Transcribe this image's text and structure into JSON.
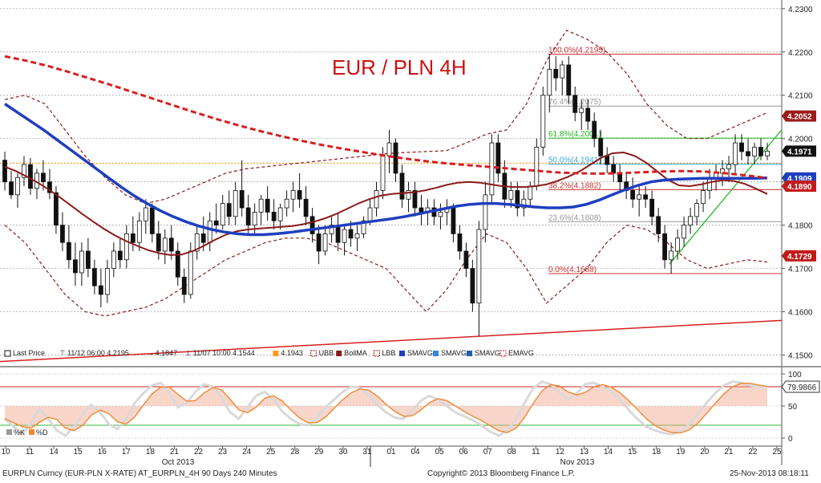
{
  "chart_data": {
    "type": "candlestick",
    "title": "EUR / PLN 4H",
    "title_color": "#cc1111",
    "y_axis": {
      "range": [
        4.1475,
        4.232
      ],
      "ticks": [
        "4.2300",
        "4.2200",
        "4.2100",
        "4.2000",
        "4.1900",
        "4.1800",
        "4.1700",
        "4.1600",
        "4.1500"
      ]
    },
    "price_badges": [
      {
        "label": "4.2052",
        "value": 4.2052,
        "color": "#9b1c1c"
      },
      {
        "label": "4.1971",
        "value": 4.1971,
        "color": "#111111"
      },
      {
        "label": "4.1909",
        "value": 4.1909,
        "color": "#1f3fbf"
      },
      {
        "label": "4.1890",
        "value": 4.189,
        "color": "#c21b1b"
      },
      {
        "label": "4.1729",
        "value": 4.1729,
        "color": "#c21b1b"
      }
    ],
    "x_axis": {
      "day_ticks": [
        "10",
        "11",
        "14",
        "15",
        "16",
        "17",
        "18",
        "21",
        "22",
        "23",
        "24",
        "25",
        "28",
        "29",
        "30",
        "31",
        "01",
        "04",
        "05",
        "06",
        "07",
        "08",
        "11",
        "12",
        "13",
        "14",
        "15",
        "18",
        "19",
        "20",
        "21",
        "22",
        "25"
      ],
      "month_labels": [
        "Oct 2013",
        "Nov 2013"
      ]
    },
    "fibonacci": [
      {
        "label": "100.0%(4.2195)",
        "value": 4.2195,
        "color": "#cc3333"
      },
      {
        "label": "76.4%(4.2075)",
        "value": 4.2075,
        "color": "#999999"
      },
      {
        "label": "61.8%(4.2001)",
        "value": 4.2001,
        "color": "#22bb22"
      },
      {
        "label": "50.0%(4.1941)",
        "value": 4.1941,
        "color": "#33aadd"
      },
      {
        "label": "38.2%(4.1882)",
        "value": 4.1882,
        "color": "#cc3333"
      },
      {
        "label": "23.6%(4.1808)",
        "value": 4.1808,
        "color": "#999999"
      },
      {
        "label": "0.0%(4.1688)",
        "value": 4.1688,
        "color": "#cc3333"
      }
    ],
    "horizontal_level": {
      "value": 4.1943,
      "color": "#ff9922"
    },
    "candles": [
      [
        4.195,
        4.197,
        4.188,
        4.19
      ],
      [
        4.19,
        4.1925,
        4.186,
        4.187
      ],
      [
        4.187,
        4.192,
        4.184,
        4.191
      ],
      [
        4.191,
        4.196,
        4.189,
        4.194
      ],
      [
        4.194,
        4.1955,
        4.187,
        4.1885
      ],
      [
        4.1885,
        4.193,
        4.186,
        4.192
      ],
      [
        4.192,
        4.195,
        4.188,
        4.19
      ],
      [
        4.19,
        4.193,
        4.186,
        4.1875
      ],
      [
        4.1875,
        4.189,
        4.178,
        4.18
      ],
      [
        4.18,
        4.183,
        4.174,
        4.176
      ],
      [
        4.176,
        4.18,
        4.17,
        4.172
      ],
      [
        4.172,
        4.176,
        4.166,
        4.169
      ],
      [
        4.169,
        4.176,
        4.166,
        4.174
      ],
      [
        4.174,
        4.177,
        4.168,
        4.17
      ],
      [
        4.17,
        4.172,
        4.164,
        4.166
      ],
      [
        4.166,
        4.17,
        4.161,
        4.164
      ],
      [
        4.164,
        4.172,
        4.162,
        4.17
      ],
      [
        4.17,
        4.176,
        4.168,
        4.174
      ],
      [
        4.174,
        4.177,
        4.17,
        4.172
      ],
      [
        4.172,
        4.18,
        4.17,
        4.178
      ],
      [
        4.178,
        4.182,
        4.174,
        4.176
      ],
      [
        4.176,
        4.183,
        4.174,
        4.181
      ],
      [
        4.181,
        4.186,
        4.178,
        4.184
      ],
      [
        4.184,
        4.185,
        4.176,
        4.178
      ],
      [
        4.178,
        4.181,
        4.172,
        4.174
      ],
      [
        4.174,
        4.179,
        4.171,
        4.177
      ],
      [
        4.177,
        4.18,
        4.172,
        4.174
      ],
      [
        4.174,
        4.176,
        4.166,
        4.168
      ],
      [
        4.168,
        4.17,
        4.162,
        4.164
      ],
      [
        4.164,
        4.176,
        4.163,
        4.174
      ],
      [
        4.174,
        4.18,
        4.172,
        4.178
      ],
      [
        4.178,
        4.182,
        4.174,
        4.176
      ],
      [
        4.176,
        4.183,
        4.174,
        4.181
      ],
      [
        4.181,
        4.185,
        4.178,
        4.18
      ],
      [
        4.18,
        4.187,
        4.179,
        4.185
      ],
      [
        4.185,
        4.188,
        4.18,
        4.182
      ],
      [
        4.182,
        4.19,
        4.18,
        4.188
      ],
      [
        4.188,
        4.195,
        4.182,
        4.184
      ],
      [
        4.184,
        4.187,
        4.178,
        4.18
      ],
      [
        4.18,
        4.185,
        4.178,
        4.183
      ],
      [
        4.183,
        4.187,
        4.18,
        4.186
      ],
      [
        4.186,
        4.189,
        4.181,
        4.183
      ],
      [
        4.183,
        4.186,
        4.179,
        4.181
      ],
      [
        4.181,
        4.185,
        4.179,
        4.184
      ],
      [
        4.184,
        4.188,
        4.182,
        4.186
      ],
      [
        4.186,
        4.19,
        4.183,
        4.188
      ],
      [
        4.188,
        4.192,
        4.184,
        4.186
      ],
      [
        4.186,
        4.189,
        4.18,
        4.182
      ],
      [
        4.182,
        4.184,
        4.176,
        4.178
      ],
      [
        4.178,
        4.18,
        4.171,
        4.174
      ],
      [
        4.174,
        4.18,
        4.173,
        4.178
      ],
      [
        4.178,
        4.182,
        4.176,
        4.18
      ],
      [
        4.18,
        4.183,
        4.174,
        4.176
      ],
      [
        4.176,
        4.18,
        4.173,
        4.179
      ],
      [
        4.179,
        4.181,
        4.175,
        4.177
      ],
      [
        4.177,
        4.18,
        4.174,
        4.178
      ],
      [
        4.178,
        4.182,
        4.177,
        4.181
      ],
      [
        4.181,
        4.186,
        4.18,
        4.184
      ],
      [
        4.184,
        4.19,
        4.182,
        4.188
      ],
      [
        4.188,
        4.198,
        4.186,
        4.196
      ],
      [
        4.196,
        4.202,
        4.192,
        4.199
      ],
      [
        4.199,
        4.2,
        4.19,
        4.192
      ],
      [
        4.192,
        4.194,
        4.184,
        4.186
      ],
      [
        4.186,
        4.19,
        4.183,
        4.188
      ],
      [
        4.188,
        4.19,
        4.182,
        4.184
      ],
      [
        4.184,
        4.187,
        4.18,
        4.183
      ],
      [
        4.183,
        4.186,
        4.18,
        4.184
      ],
      [
        4.184,
        4.186,
        4.18,
        4.182
      ],
      [
        4.182,
        4.185,
        4.179,
        4.183
      ],
      [
        4.183,
        4.186,
        4.18,
        4.184
      ],
      [
        4.184,
        4.185,
        4.176,
        4.178
      ],
      [
        4.178,
        4.18,
        4.172,
        4.174
      ],
      [
        4.174,
        4.176,
        4.168,
        4.17
      ],
      [
        4.17,
        4.172,
        4.16,
        4.162
      ],
      [
        4.162,
        4.181,
        4.1544,
        4.179
      ],
      [
        4.179,
        4.19,
        4.176,
        4.187
      ],
      [
        4.187,
        4.201,
        4.185,
        4.199
      ],
      [
        4.199,
        4.201,
        4.19,
        4.192
      ],
      [
        4.192,
        4.195,
        4.184,
        4.186
      ],
      [
        4.186,
        4.19,
        4.184,
        4.188
      ],
      [
        4.188,
        4.19,
        4.182,
        4.184
      ],
      [
        4.184,
        4.188,
        4.182,
        4.186
      ],
      [
        4.186,
        4.19,
        4.184,
        4.189
      ],
      [
        4.189,
        4.2,
        4.188,
        4.198
      ],
      [
        4.198,
        4.212,
        4.196,
        4.21
      ],
      [
        4.21,
        4.2195,
        4.206,
        4.216
      ],
      [
        4.216,
        4.219,
        4.211,
        4.214
      ],
      [
        4.214,
        4.218,
        4.21,
        4.217
      ],
      [
        4.217,
        4.219,
        4.208,
        4.21
      ],
      [
        4.21,
        4.212,
        4.204,
        4.206
      ],
      [
        4.206,
        4.209,
        4.202,
        4.207
      ],
      [
        4.207,
        4.209,
        4.202,
        4.204
      ],
      [
        4.204,
        4.206,
        4.198,
        4.2
      ],
      [
        4.2,
        4.202,
        4.194,
        4.196
      ],
      [
        4.196,
        4.198,
        4.192,
        4.194
      ],
      [
        4.194,
        4.196,
        4.19,
        4.192
      ],
      [
        4.192,
        4.194,
        4.188,
        4.19
      ],
      [
        4.19,
        4.192,
        4.186,
        4.188
      ],
      [
        4.188,
        4.191,
        4.184,
        4.186
      ],
      [
        4.186,
        4.189,
        4.182,
        4.187
      ],
      [
        4.187,
        4.189,
        4.184,
        4.186
      ],
      [
        4.186,
        4.188,
        4.18,
        4.182
      ],
      [
        4.182,
        4.184,
        4.176,
        4.178
      ],
      [
        4.178,
        4.18,
        4.17,
        4.172
      ],
      [
        4.172,
        4.176,
        4.1688,
        4.174
      ],
      [
        4.174,
        4.179,
        4.172,
        4.177
      ],
      [
        4.177,
        4.182,
        4.175,
        4.18
      ],
      [
        4.18,
        4.184,
        4.178,
        4.182
      ],
      [
        4.182,
        4.186,
        4.18,
        4.185
      ],
      [
        4.185,
        4.19,
        4.183,
        4.188
      ],
      [
        4.188,
        4.193,
        4.186,
        4.191
      ],
      [
        4.191,
        4.194,
        4.188,
        4.192
      ],
      [
        4.192,
        4.195,
        4.189,
        4.193
      ],
      [
        4.193,
        4.196,
        4.19,
        4.194
      ],
      [
        4.194,
        4.201,
        4.192,
        4.199
      ],
      [
        4.199,
        4.201,
        4.195,
        4.197
      ],
      [
        4.197,
        4.2,
        4.194,
        4.196
      ],
      [
        4.196,
        4.199,
        4.194,
        4.198
      ],
      [
        4.198,
        4.2,
        4.195,
        4.196
      ],
      [
        4.196,
        4.199,
        4.195,
        4.1971
      ]
    ],
    "overlays": [
      {
        "name": "BollMA",
        "color": "#8b1a1a",
        "values": [
          4.1935,
          4.1925,
          4.1912,
          4.1898,
          4.1882,
          4.1864,
          4.1845,
          4.1826,
          4.1808,
          4.1791,
          4.1776,
          4.1763,
          4.1752,
          4.1742,
          4.1735,
          4.1731,
          4.1732,
          4.174,
          4.1752,
          4.1766,
          4.1778,
          4.1786,
          4.179,
          4.1792,
          4.1794,
          4.1796,
          4.1798,
          4.1802,
          4.1808,
          4.1816,
          4.1826,
          4.1838,
          4.185,
          4.186,
          4.1868,
          4.1872,
          4.1874,
          4.1876,
          4.188,
          4.1886,
          4.1893,
          4.1898,
          4.19,
          4.1898,
          4.1894,
          4.189,
          4.1888,
          4.1888,
          4.189,
          4.1894,
          4.1902,
          4.1912,
          4.1924,
          4.194,
          4.1956,
          4.1966,
          4.1968,
          4.196,
          4.1945,
          4.1925,
          4.1905,
          4.1892,
          4.189,
          4.1894,
          4.19,
          4.1904,
          4.1902,
          4.1895,
          4.1884,
          4.1872
        ]
      },
      {
        "name": "SMAVG",
        "color": "#1f3fbf",
        "values": [
          4.208,
          4.206,
          4.204,
          4.202,
          4.1998,
          4.1976,
          4.1954,
          4.1932,
          4.191,
          4.1888,
          4.1868,
          4.185,
          4.1834,
          4.182,
          4.1808,
          4.1798,
          4.179,
          4.1784,
          4.178,
          4.1778,
          4.1778,
          4.178,
          4.1783,
          4.1787,
          4.1791,
          4.1795,
          4.1799,
          4.1803,
          4.1807,
          4.1811,
          4.1815,
          4.182,
          4.1826,
          4.1832,
          4.1838,
          4.1844,
          4.1848,
          4.185,
          4.185,
          4.1848,
          4.1845,
          4.1842,
          4.184,
          4.184,
          4.1842,
          4.1848,
          4.1858,
          4.187,
          4.1882,
          4.1892,
          4.19,
          4.1904,
          4.1906,
          4.1907,
          4.1908,
          4.1908,
          4.1908,
          4.1908,
          4.1908,
          4.1909
        ]
      },
      {
        "name": "EMAVG",
        "color": "#d62020",
        "values": [
          4.219,
          4.218,
          4.2168,
          4.2154,
          4.2139,
          4.2124,
          4.2108,
          4.2092,
          4.2076,
          4.206,
          4.2045,
          4.2031,
          4.2018,
          4.2006,
          4.1995,
          4.1985,
          4.1976,
          4.1968,
          4.196,
          4.1953,
          4.1947,
          4.1942,
          4.1938,
          4.1934,
          4.193,
          4.1926,
          4.1922,
          4.192,
          4.1919,
          4.192,
          4.1922,
          4.1924,
          4.1925,
          4.1924,
          4.192,
          4.1915,
          4.1909
        ]
      }
    ],
    "bands": [
      {
        "name": "UBB",
        "color": "#8b1a1a",
        "values": [
          4.209,
          4.21,
          4.208,
          4.202,
          4.196,
          4.191,
          4.187,
          4.185,
          4.186,
          4.188,
          4.19,
          4.192,
          4.193,
          4.1935,
          4.194,
          4.1945,
          4.195,
          4.1955,
          4.196,
          4.1965,
          4.1968,
          4.197,
          4.1972,
          4.199,
          4.201,
          4.202,
          4.208,
          4.218,
          4.225,
          4.223,
          4.22,
          4.215,
          4.208,
          4.203,
          4.2,
          4.2,
          4.202,
          4.204,
          4.206
        ]
      },
      {
        "name": "LBB",
        "color": "#8b1a1a",
        "values": [
          4.18,
          4.176,
          4.17,
          4.164,
          4.16,
          4.159,
          4.16,
          4.161,
          4.163,
          4.166,
          4.169,
          4.172,
          4.174,
          4.176,
          4.177,
          4.177,
          4.176,
          4.174,
          4.172,
          4.17,
          4.165,
          4.16,
          4.165,
          4.172,
          4.178,
          4.176,
          4.17,
          4.162,
          4.166,
          4.17,
          4.176,
          4.18,
          4.179,
          4.176,
          4.172,
          4.17,
          4.171,
          4.172,
          4.1715
        ]
      }
    ],
    "legend": [
      {
        "icon": "candle-icon",
        "label": "Last Price"
      },
      {
        "icon": "high-marker-icon",
        "label": "11/12 06:00 4.2195"
      },
      {
        "icon": "arrow-icon",
        "label": "4.1847"
      },
      {
        "icon": "low-marker-icon",
        "label": "11/07 10:00 4.1544"
      },
      {
        "icon": "swatch-icon",
        "label": "4.1943",
        "color": "#ff9922"
      },
      {
        "icon": "band-icon",
        "label": "UBB",
        "color": "#8b1a1a"
      },
      {
        "icon": "swatch-icon",
        "label": "BollMA",
        "color": "#8b1a1a"
      },
      {
        "icon": "band-icon",
        "label": "LBB",
        "color": "#8b1a1a"
      },
      {
        "icon": "swatch-icon",
        "label": "SMAVG",
        "color": "#1f3fbf"
      },
      {
        "icon": "swatch-icon",
        "label": "SMAVG",
        "color": "#3388dd"
      },
      {
        "icon": "swatch-icon",
        "label": "SMAVG",
        "color": "#1f5fa8"
      },
      {
        "icon": "band-icon",
        "label": "EMAVG",
        "color": "#d62020"
      }
    ],
    "oscillator": {
      "ticks": [
        "100",
        "50",
        "0"
      ],
      "range": [
        0,
        100
      ],
      "upper_level": 80,
      "lower_level": 20,
      "badge": "79.9866",
      "legend": [
        "%K",
        "%D"
      ],
      "k_values": [
        30,
        18,
        6,
        22,
        45,
        30,
        12,
        4,
        18,
        38,
        52,
        40,
        22,
        14,
        30,
        55,
        70,
        82,
        86,
        70,
        48,
        55,
        72,
        84,
        80,
        62,
        40,
        30,
        48,
        66,
        72,
        60,
        42,
        30,
        22,
        20,
        30,
        48,
        60,
        72,
        80,
        78,
        66,
        52,
        40,
        32,
        30,
        42,
        58,
        66,
        60,
        50,
        40,
        34,
        28,
        20,
        10,
        4,
        12,
        30,
        55,
        78,
        88,
        84,
        72,
        60,
        70,
        84,
        86,
        80,
        72,
        60,
        44,
        30,
        18,
        12,
        8,
        6,
        10,
        22,
        38,
        55,
        70,
        82,
        88,
        86,
        82,
        80,
        80
      ]
    },
    "footer": {
      "left": "EURPLN Curncy (EUR-PLN X-RATE) AT_EURPLN_4H 90 Days 240 Minutes",
      "center": "Copyright© 2013 Bloomberg Finance L.P.",
      "right": "25-Nov-2013 08:18:11"
    }
  }
}
